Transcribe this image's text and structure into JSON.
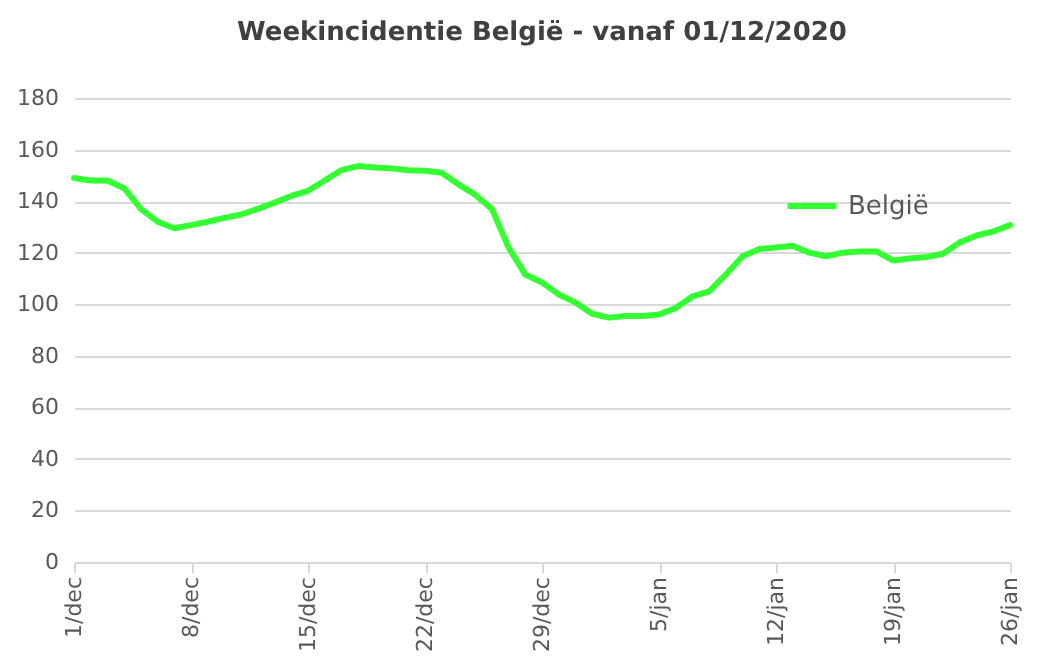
{
  "chart_data": {
    "type": "line",
    "title": "Weekincidentie  België - vanaf 01/12/2020",
    "categories": [
      "1/dec",
      null,
      null,
      null,
      null,
      null,
      null,
      "8/dec",
      null,
      null,
      null,
      null,
      null,
      null,
      "15/dec",
      null,
      null,
      null,
      null,
      null,
      null,
      "22/dec",
      null,
      null,
      null,
      null,
      null,
      null,
      "29/dec",
      null,
      null,
      null,
      null,
      null,
      null,
      "5/jan",
      null,
      null,
      null,
      null,
      null,
      null,
      "12/jan",
      null,
      null,
      null,
      null,
      null,
      null,
      "19/jan",
      null,
      null,
      null,
      null,
      null,
      null,
      "26/jan"
    ],
    "series": [
      {
        "name": "België",
        "color": "#33ff33",
        "values": [
          149,
          148,
          148,
          145,
          137,
          132,
          129.5,
          130.7,
          132,
          133.5,
          134.8,
          137,
          139.4,
          142,
          144,
          148,
          152,
          153.6,
          153,
          152.7,
          152,
          151.8,
          151,
          146.5,
          142.5,
          137,
          122,
          111.5,
          108.4,
          103.8,
          100.7,
          96.3,
          94.8,
          95.4,
          95.4,
          96,
          98.5,
          103,
          105,
          111.5,
          118.6,
          121.4,
          122,
          122.7,
          120,
          118.6,
          120,
          120.5,
          120.5,
          117,
          117.7,
          118.3,
          119.6,
          124,
          126.7,
          128.2,
          130.7
        ]
      }
    ],
    "ylim": [
      0,
      180
    ],
    "yticks": [
      0,
      20,
      40,
      60,
      80,
      100,
      120,
      140,
      160,
      180
    ],
    "grid": "y",
    "legend": "top right",
    "marker": "none",
    "line_style": "solid"
  }
}
